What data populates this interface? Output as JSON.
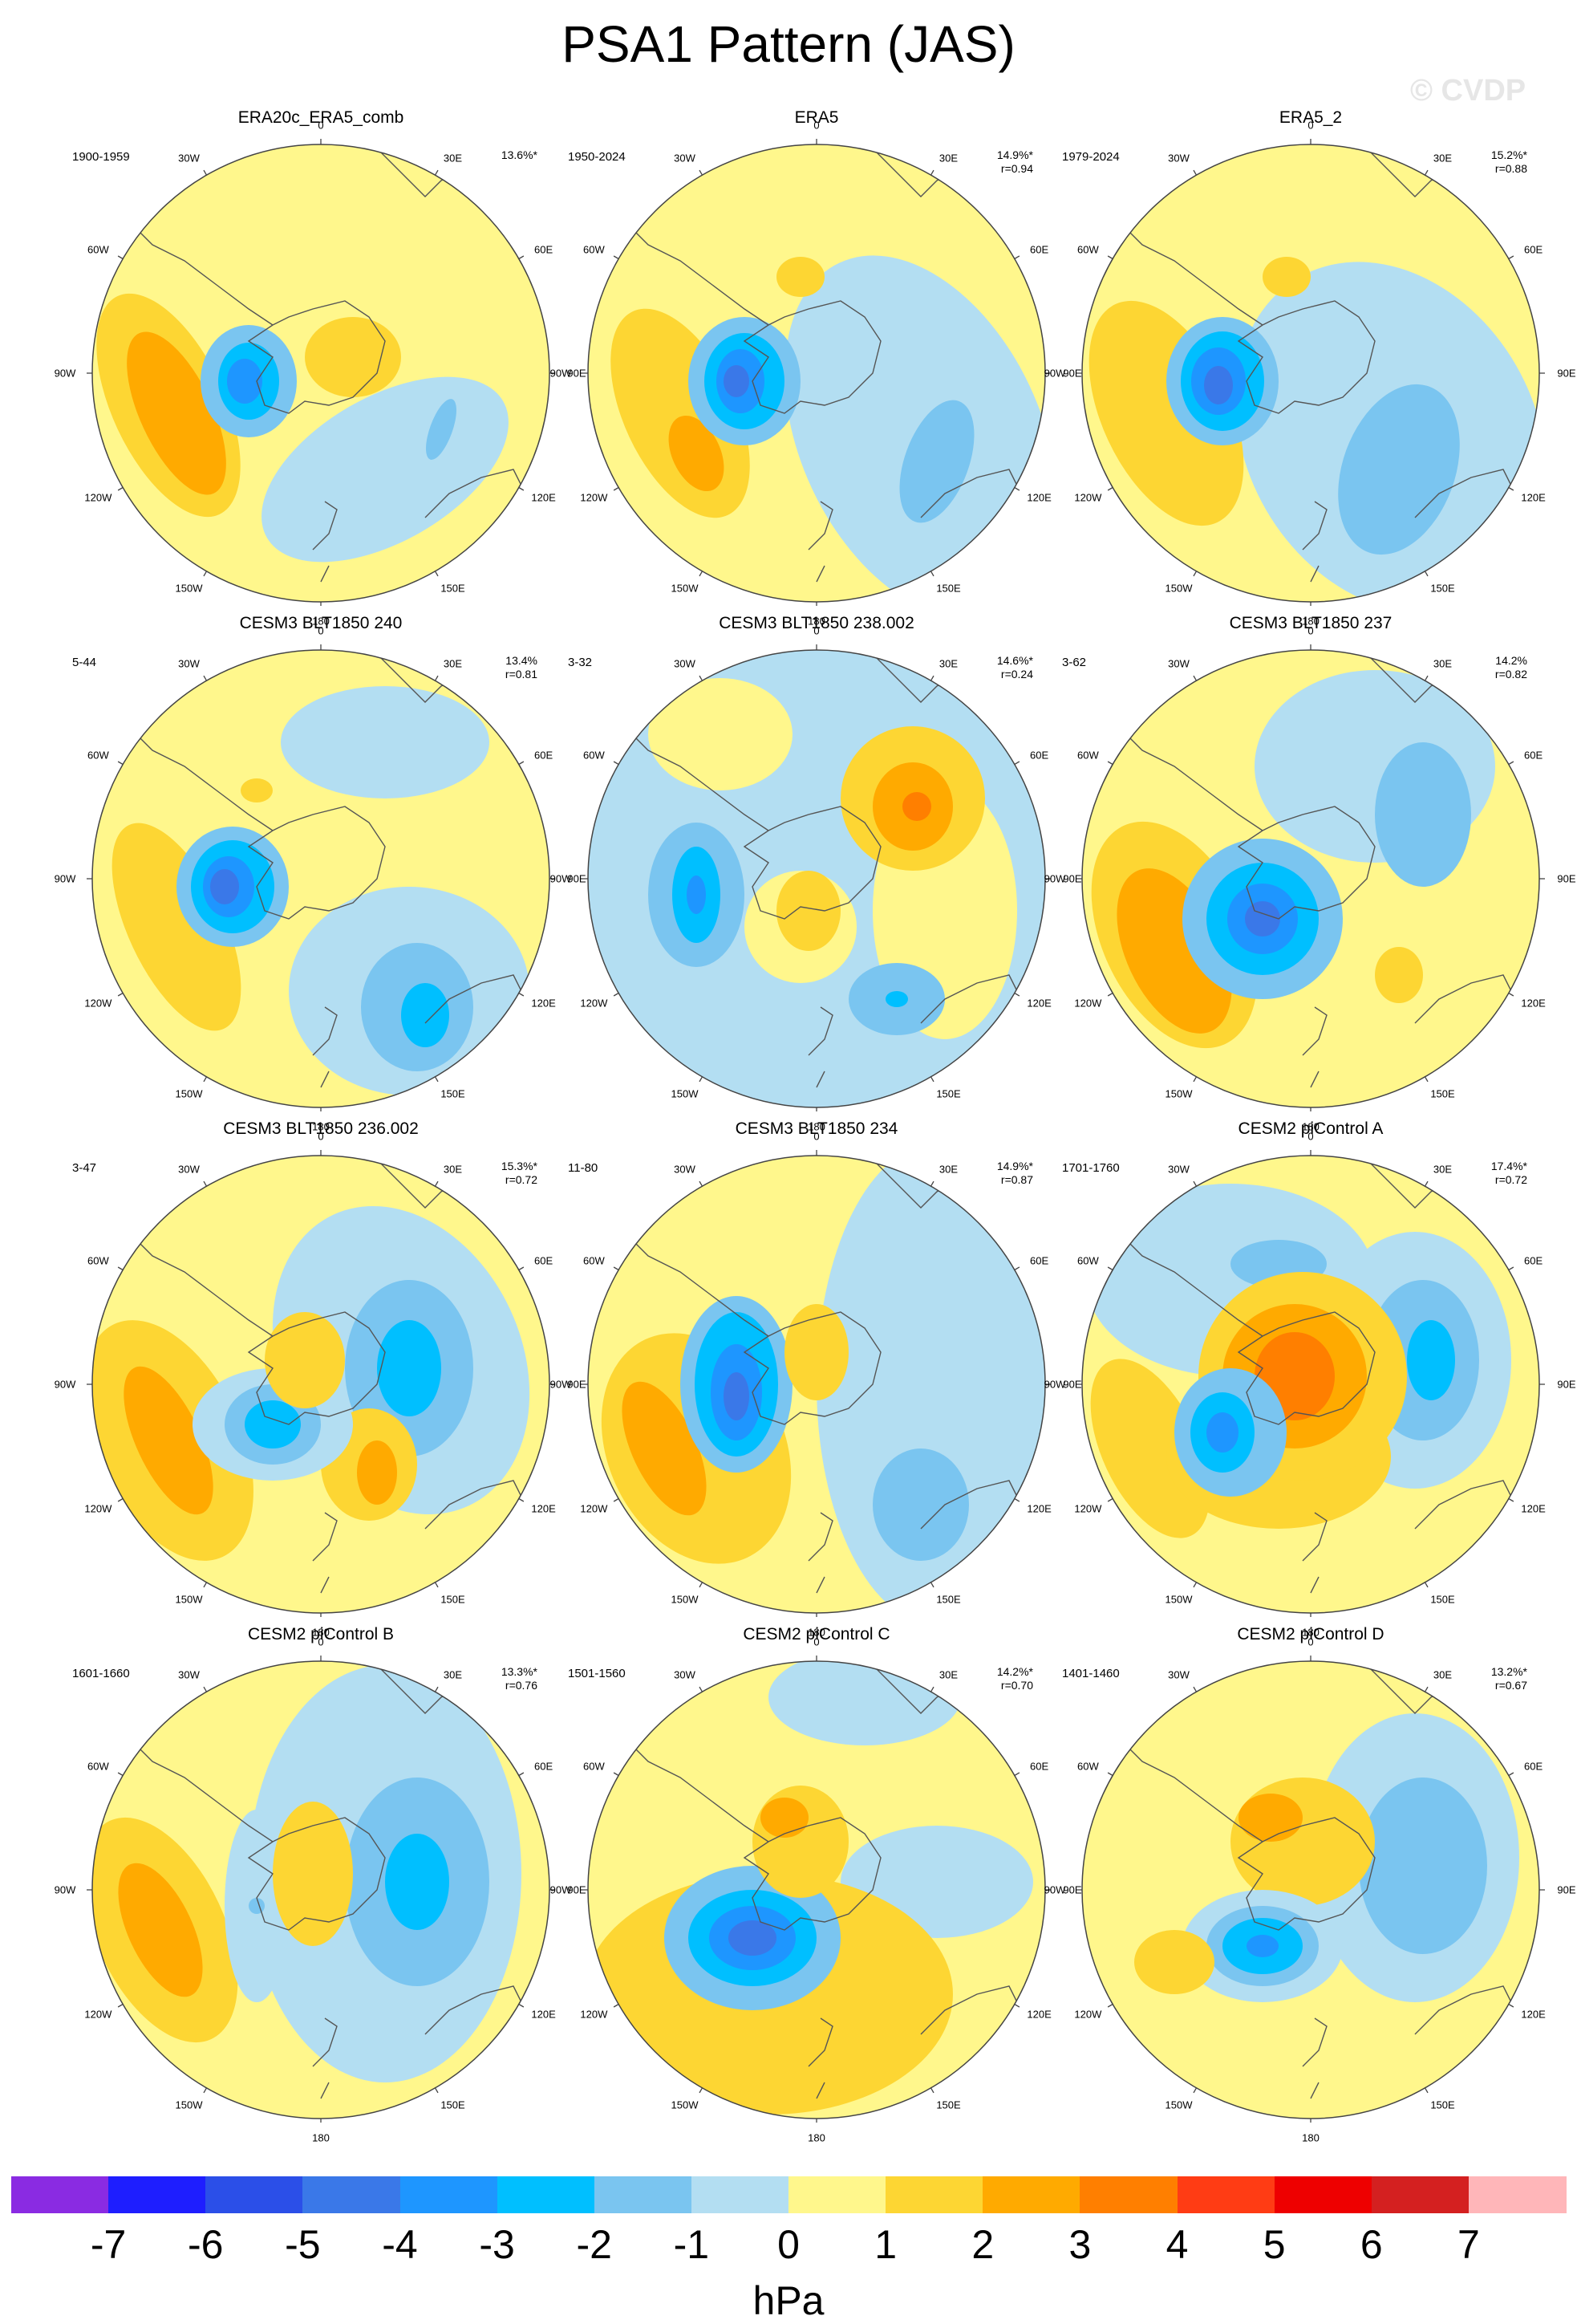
{
  "title": "PSA1 Pattern (JAS)",
  "watermark": "© CVDP",
  "lon_labels": [
    "0",
    "30E",
    "60E",
    "90E",
    "120E",
    "150E",
    "180",
    "150W",
    "120W",
    "90W",
    "60W",
    "30W"
  ],
  "panels": [
    {
      "title": "ERA20c_ERA5_comb",
      "period": "1900-1959",
      "pct": "13.6%*",
      "r": ""
    },
    {
      "title": "ERA5",
      "period": "1950-2024",
      "pct": "14.9%*",
      "r": "r=0.94"
    },
    {
      "title": "ERA5_2",
      "period": "1979-2024",
      "pct": "15.2%*",
      "r": "r=0.88"
    },
    {
      "title": "CESM3 BLT1850 240",
      "period": "5-44",
      "pct": "13.4%",
      "r": "r=0.81"
    },
    {
      "title": "CESM3 BLT1850 238.002",
      "period": "3-32",
      "pct": "14.6%*",
      "r": "r=0.24"
    },
    {
      "title": "CESM3 BLT1850 237",
      "period": "3-62",
      "pct": "14.2%",
      "r": "r=0.82"
    },
    {
      "title": "CESM3 BLT1850 236.002",
      "period": "3-47",
      "pct": "15.3%*",
      "r": "r=0.72"
    },
    {
      "title": "CESM3 BLT1850 234",
      "period": "11-80",
      "pct": "14.9%*",
      "r": "r=0.87"
    },
    {
      "title": "CESM2 piControl A",
      "period": "1701-1760",
      "pct": "17.4%*",
      "r": "r=0.72"
    },
    {
      "title": "CESM2 piControl B",
      "period": "1601-1660",
      "pct": "13.3%*",
      "r": "r=0.76"
    },
    {
      "title": "CESM2 piControl C",
      "period": "1501-1560",
      "pct": "14.2%*",
      "r": "r=0.70"
    },
    {
      "title": "CESM2 piControl D",
      "period": "1401-1460",
      "pct": "13.2%*",
      "r": "r=0.67"
    }
  ],
  "colorbar": {
    "unit": "hPa",
    "labels": [
      "-7",
      "-6",
      "-5",
      "-4",
      "-3",
      "-2",
      "-1",
      "0",
      "1",
      "2",
      "3",
      "4",
      "5",
      "6",
      "7"
    ],
    "colors": [
      "#8a2be2",
      "#1e1eff",
      "#2b4fe8",
      "#3a78e8",
      "#1e96ff",
      "#00bfff",
      "#7ac5f0",
      "#b3def2",
      "#fff78c",
      "#fdd633",
      "#ffaa00",
      "#ff7f00",
      "#ff3c14",
      "#ee0000",
      "#d42020",
      "#ffb6b9"
    ]
  }
}
